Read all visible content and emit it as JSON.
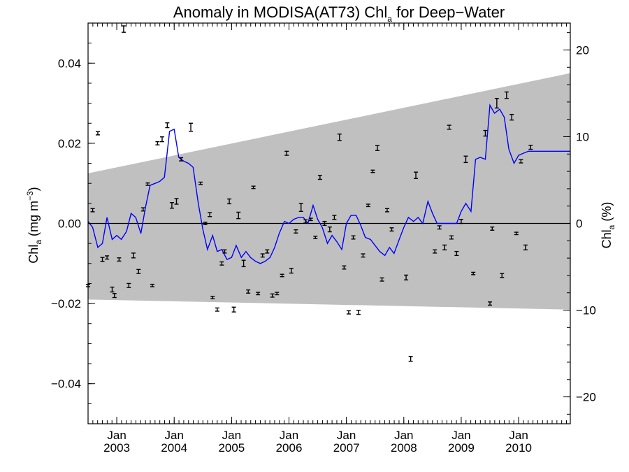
{
  "chart_data": {
    "type": "line",
    "title": {
      "main": "Anomaly in MODISA(AT73) Chl",
      "sub": "a",
      "tail": " for Deep−Water"
    },
    "ylabel_left": {
      "main": "Chl",
      "sub": "a",
      "tail": " (mg m",
      "sup": "−3",
      "close": ")"
    },
    "ylabel_right": {
      "main": "Chl",
      "sub": "a",
      "tail": " (%)"
    },
    "ylim": [
      -0.05,
      0.05
    ],
    "xlim": [
      2002.5,
      2010.9
    ],
    "right_axis_scale_pct_per_unit": 462,
    "y_ticks": [
      {
        "v": 0.04,
        "label": "0.04"
      },
      {
        "v": 0.02,
        "label": "0.02"
      },
      {
        "v": 0.0,
        "label": "0.00"
      },
      {
        "v": -0.02,
        "label": "−0.02"
      },
      {
        "v": -0.04,
        "label": "−0.04"
      }
    ],
    "y2_ticks": [
      {
        "v": 20,
        "label": "20"
      },
      {
        "v": 10,
        "label": "10"
      },
      {
        "v": 0,
        "label": "0"
      },
      {
        "v": -10,
        "label": "−10"
      },
      {
        "v": -20,
        "label": "−20"
      }
    ],
    "x_ticks": [
      {
        "v": 2003.0,
        "month": "Jan",
        "year": "2003"
      },
      {
        "v": 2004.0,
        "month": "Jan",
        "year": "2004"
      },
      {
        "v": 2005.0,
        "month": "Jan",
        "year": "2005"
      },
      {
        "v": 2006.0,
        "month": "Jan",
        "year": "2006"
      },
      {
        "v": 2007.0,
        "month": "Jan",
        "year": "2007"
      },
      {
        "v": 2008.0,
        "month": "Jan",
        "year": "2008"
      },
      {
        "v": 2009.0,
        "month": "Jan",
        "year": "2009"
      },
      {
        "v": 2010.0,
        "month": "Jan",
        "year": "2010"
      }
    ],
    "envelope": {
      "upper": [
        [
          2002.5,
          0.0125
        ],
        [
          2010.9,
          0.0375
        ]
      ],
      "lower": [
        [
          2002.5,
          -0.019
        ],
        [
          2010.9,
          -0.0215
        ]
      ],
      "color": "#c0c0c0"
    },
    "zero_line": 0,
    "series": [
      {
        "kind": "line",
        "color": "#0000ff",
        "x": [
          2002.5,
          2002.58,
          2002.67,
          2002.75,
          2002.83,
          2002.92,
          2003.0,
          2003.08,
          2003.17,
          2003.25,
          2003.33,
          2003.42,
          2003.5,
          2003.58,
          2003.67,
          2003.75,
          2003.83,
          2003.92,
          2004.0,
          2004.08,
          2004.17,
          2004.25,
          2004.33,
          2004.42,
          2004.5,
          2004.58,
          2004.67,
          2004.75,
          2004.83,
          2004.92,
          2005.0,
          2005.08,
          2005.17,
          2005.25,
          2005.33,
          2005.42,
          2005.5,
          2005.58,
          2005.67,
          2005.75,
          2005.83,
          2005.92,
          2006.0,
          2006.08,
          2006.17,
          2006.25,
          2006.33,
          2006.42,
          2006.5,
          2006.58,
          2006.67,
          2006.75,
          2006.83,
          2006.92,
          2007.0,
          2007.08,
          2007.17,
          2007.25,
          2007.33,
          2007.42,
          2007.5,
          2007.58,
          2007.67,
          2007.75,
          2007.83,
          2007.92,
          2008.0,
          2008.08,
          2008.17,
          2008.25,
          2008.33,
          2008.42,
          2008.5,
          2008.58,
          2008.67,
          2008.75,
          2008.83,
          2008.92,
          2009.0,
          2009.08,
          2009.17,
          2009.25,
          2009.33,
          2009.42,
          2009.5,
          2009.58,
          2009.67,
          2009.75,
          2009.83,
          2009.92,
          2010.0,
          2010.08,
          2010.17,
          2010.25,
          2010.33,
          2010.42,
          2010.5,
          2010.58,
          2010.67,
          2010.75,
          2010.83,
          2010.9
        ],
        "y": [
          0.0005,
          -0.001,
          -0.006,
          -0.005,
          0.0015,
          -0.004,
          -0.003,
          -0.004,
          -0.002,
          0.0025,
          0.0015,
          -0.0025,
          0.004,
          0.0095,
          0.01,
          0.0105,
          0.0115,
          0.023,
          0.0235,
          0.0165,
          0.0155,
          0.015,
          0.014,
          0.005,
          -0.0015,
          -0.0065,
          -0.003,
          -0.007,
          -0.0065,
          -0.009,
          -0.0085,
          -0.0055,
          -0.0085,
          -0.007,
          -0.0085,
          -0.0095,
          -0.01,
          -0.0095,
          -0.0085,
          -0.006,
          -0.0025,
          0.0005,
          0.0,
          0.001,
          0.0015,
          0.0015,
          0.0,
          0.0045,
          0.001,
          -0.001,
          -0.005,
          -0.003,
          -0.0045,
          -0.0065,
          0.0,
          0.002,
          0.002,
          -0.0005,
          -0.0035,
          -0.004,
          -0.0055,
          -0.007,
          -0.008,
          -0.006,
          -0.0075,
          -0.004,
          -0.001,
          0.0015,
          0.0005,
          0.0015,
          0.0,
          0.0055,
          0.0025,
          0.0,
          0.0,
          0.0,
          0.0,
          0.0,
          0.003,
          0.005,
          0.003,
          0.016,
          0.0165,
          0.016,
          0.0295,
          0.0275,
          0.0285,
          0.0265,
          0.0185,
          0.015,
          0.017,
          0.0175,
          0.018,
          0.018,
          0.018,
          0.018,
          0.018,
          0.018,
          0.018,
          0.018,
          0.018,
          0.018
        ]
      },
      {
        "kind": "errorbar",
        "color": "#000000",
        "points": [
          [
            2002.5,
            -0.0155,
            0.0003
          ],
          [
            2002.58,
            0.0033,
            0.0004
          ],
          [
            2002.67,
            0.0225,
            0.0004
          ],
          [
            2002.75,
            -0.009,
            0.0005
          ],
          [
            2002.83,
            -0.0085,
            0.0004
          ],
          [
            2002.92,
            -0.0165,
            0.0006
          ],
          [
            2002.96,
            -0.018,
            0.0005
          ],
          [
            2003.04,
            -0.009,
            0.0004
          ],
          [
            2003.12,
            0.0485,
            0.0008
          ],
          [
            2003.21,
            -0.0155,
            0.0005
          ],
          [
            2003.29,
            -0.008,
            0.0006
          ],
          [
            2003.38,
            -0.012,
            0.0005
          ],
          [
            2003.46,
            0.0035,
            0.0004
          ],
          [
            2003.54,
            0.0098,
            0.0003
          ],
          [
            2003.62,
            -0.0155,
            0.0003
          ],
          [
            2003.71,
            0.02,
            0.0004
          ],
          [
            2003.79,
            0.021,
            0.0006
          ],
          [
            2003.88,
            0.0245,
            0.0006
          ],
          [
            2003.96,
            0.0045,
            0.0007
          ],
          [
            2004.04,
            0.0055,
            0.0007
          ],
          [
            2004.12,
            0.016,
            0.0004
          ],
          [
            2004.29,
            0.024,
            0.001
          ],
          [
            2004.46,
            0.01,
            0.0003
          ],
          [
            2004.54,
            0.0,
            0.0003
          ],
          [
            2004.62,
            0.0022,
            0.0005
          ],
          [
            2004.67,
            -0.0185,
            0.0003
          ],
          [
            2004.75,
            -0.0215,
            0.0004
          ],
          [
            2004.83,
            -0.01,
            0.0004
          ],
          [
            2004.88,
            -0.007,
            0.0004
          ],
          [
            2004.96,
            0.0055,
            0.0006
          ],
          [
            2005.04,
            -0.0215,
            0.0006
          ],
          [
            2005.12,
            0.002,
            0.0008
          ],
          [
            2005.21,
            -0.01,
            0.0008
          ],
          [
            2005.29,
            -0.017,
            0.0004
          ],
          [
            2005.38,
            0.009,
            0.0003
          ],
          [
            2005.46,
            -0.0175,
            0.0003
          ],
          [
            2005.54,
            -0.008,
            0.0004
          ],
          [
            2005.62,
            -0.007,
            0.0004
          ],
          [
            2005.71,
            -0.018,
            0.0004
          ],
          [
            2005.79,
            -0.0175,
            0.0003
          ],
          [
            2005.88,
            -0.013,
            0.0003
          ],
          [
            2005.96,
            0.0175,
            0.0005
          ],
          [
            2006.04,
            -0.0118,
            0.0006
          ],
          [
            2006.12,
            -0.002,
            0.0004
          ],
          [
            2006.21,
            0.004,
            0.001
          ],
          [
            2006.29,
            0.0005,
            0.0004
          ],
          [
            2006.38,
            0.001,
            0.0003
          ],
          [
            2006.46,
            -0.0035,
            0.0003
          ],
          [
            2006.54,
            0.0115,
            0.0005
          ],
          [
            2006.62,
            0.0,
            0.0005
          ],
          [
            2006.71,
            -0.0015,
            0.0006
          ],
          [
            2006.79,
            0.0015,
            0.0005
          ],
          [
            2006.88,
            0.0215,
            0.0008
          ],
          [
            2006.96,
            -0.011,
            0.0004
          ],
          [
            2007.04,
            -0.0222,
            0.0004
          ],
          [
            2007.12,
            -0.0035,
            0.0004
          ],
          [
            2007.21,
            -0.0222,
            0.0005
          ],
          [
            2007.29,
            -0.008,
            0.0004
          ],
          [
            2007.38,
            0.0045,
            0.0003
          ],
          [
            2007.46,
            0.013,
            0.0003
          ],
          [
            2007.54,
            0.0188,
            0.0006
          ],
          [
            2007.62,
            -0.014,
            0.0004
          ],
          [
            2007.71,
            0.0033,
            0.0004
          ],
          [
            2007.79,
            -0.0015,
            0.0004
          ],
          [
            2008.04,
            -0.0135,
            0.0006
          ],
          [
            2008.12,
            -0.0338,
            0.0006
          ],
          [
            2008.21,
            0.012,
            0.0008
          ],
          [
            2008.54,
            -0.007,
            0.0004
          ],
          [
            2008.62,
            -0.001,
            0.0004
          ],
          [
            2008.71,
            -0.006,
            0.0006
          ],
          [
            2008.79,
            0.024,
            0.0005
          ],
          [
            2008.83,
            -0.0035,
            0.0004
          ],
          [
            2008.92,
            -0.0075,
            0.0005
          ],
          [
            2009.0,
            0.0005,
            0.0005
          ],
          [
            2009.08,
            0.016,
            0.0008
          ],
          [
            2009.21,
            -0.0125,
            0.0003
          ],
          [
            2009.42,
            0.0225,
            0.0007
          ],
          [
            2009.5,
            -0.02,
            0.0004
          ],
          [
            2009.54,
            -0.0013,
            0.0004
          ],
          [
            2009.62,
            0.03,
            0.0012
          ],
          [
            2009.71,
            -0.013,
            0.0005
          ],
          [
            2009.79,
            0.032,
            0.0008
          ],
          [
            2009.88,
            0.0265,
            0.0007
          ],
          [
            2009.96,
            -0.0025,
            0.0003
          ],
          [
            2010.04,
            0.0155,
            0.0004
          ],
          [
            2010.12,
            -0.006,
            0.0006
          ],
          [
            2010.21,
            0.019,
            0.0005
          ]
        ]
      }
    ]
  }
}
